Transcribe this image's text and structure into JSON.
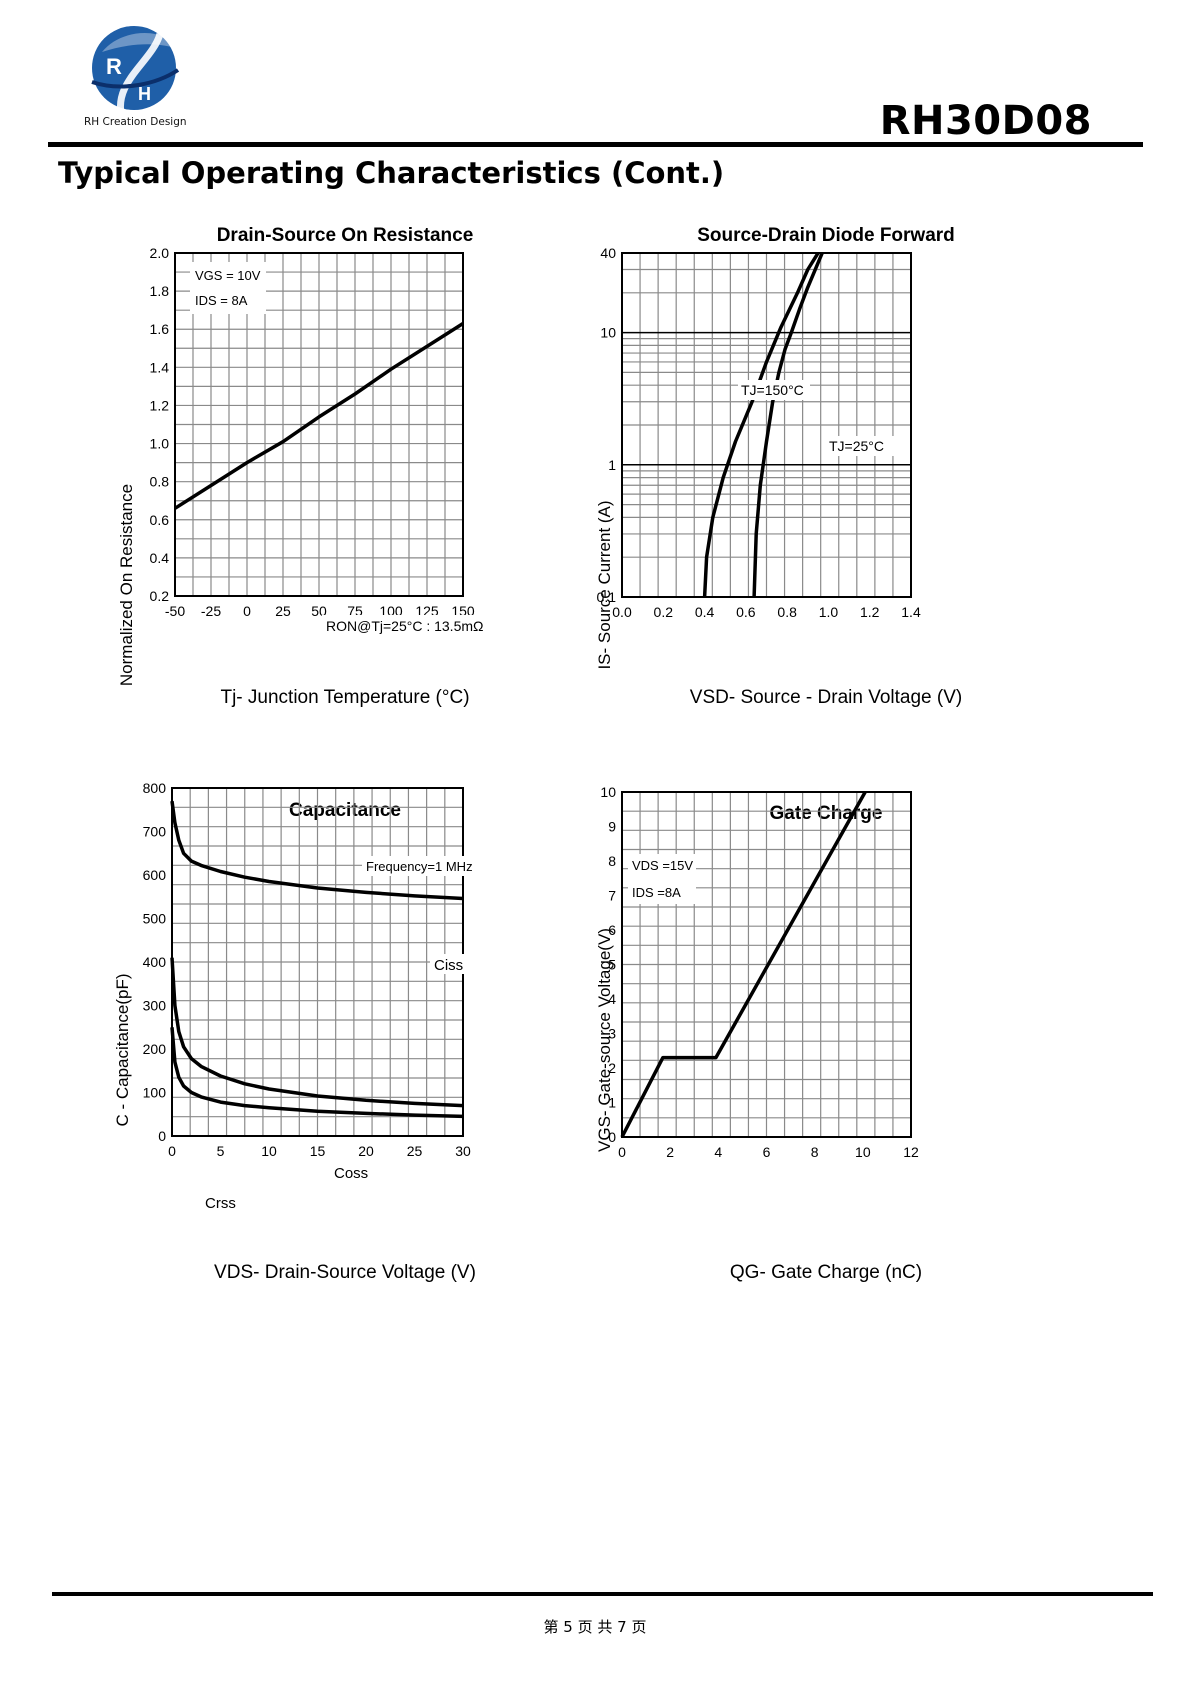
{
  "header": {
    "logo_text": "RH Creation Design",
    "part_number": "RH30D08",
    "section_title": "Typical Operating Characteristics (Cont.)"
  },
  "footer": {
    "page_text": "第 5 页 共 7 页"
  },
  "colors": {
    "brand_blue": "#1f5fa8",
    "brand_dark": "#0b2f6b"
  },
  "chart_data": [
    {
      "id": "rds",
      "type": "line",
      "title": "Drain-Source On Resistance",
      "xlabel": "Tj- Junction Temperature (°C)",
      "ylabel": "Normalized On Resistance",
      "xlim": [
        -50,
        150
      ],
      "ylim": [
        0.2,
        2.0
      ],
      "x_ticks": [
        "-50",
        "-25",
        "0",
        "25",
        "50",
        "75",
        "100",
        "125",
        "150"
      ],
      "y_ticks": [
        "0.2",
        "0.4",
        "0.6",
        "0.8",
        "1.0",
        "1.2",
        "1.4",
        "1.6",
        "1.8",
        "2.0"
      ],
      "grid": true,
      "annotations": [
        "VGS = 10V",
        "IDS = 8A",
        "RON@Tj=25°C : 13.5mΩ"
      ],
      "series": [
        {
          "x": [
            -50,
            -25,
            0,
            25,
            50,
            75,
            100,
            125,
            150
          ],
          "y": [
            0.66,
            0.78,
            0.9,
            1.01,
            1.14,
            1.26,
            1.39,
            1.51,
            1.63
          ]
        }
      ]
    },
    {
      "id": "diode",
      "type": "line",
      "title": "Source-Drain Diode Forward",
      "xlabel": "VSD- Source - Drain Voltage (V)",
      "ylabel": "IS- Source Current (A)",
      "xlim": [
        0.0,
        1.4
      ],
      "ylim": [
        0.1,
        40
      ],
      "y_scale": "log",
      "x_ticks": [
        "0.0",
        "0.2",
        "0.4",
        "0.6",
        "0.8",
        "1.0",
        "1.2",
        "1.4"
      ],
      "y_ticks": [
        "0.1",
        "1",
        "10",
        "40"
      ],
      "grid": true,
      "series": [
        {
          "name": "TJ=150°C",
          "x": [
            0.4,
            0.41,
            0.44,
            0.49,
            0.55,
            0.63,
            0.7,
            0.77,
            0.85,
            0.9,
            0.95
          ],
          "y": [
            0.1,
            0.2,
            0.4,
            0.8,
            1.5,
            3.0,
            6.0,
            11,
            20,
            30,
            40
          ]
        },
        {
          "name": "TJ=25°C",
          "x": [
            0.64,
            0.65,
            0.67,
            0.7,
            0.73,
            0.76,
            0.79,
            0.82,
            0.86,
            0.9,
            0.97
          ],
          "y": [
            0.1,
            0.3,
            0.7,
            1.5,
            3.0,
            5.0,
            7.5,
            10,
            15,
            22,
            40
          ]
        }
      ]
    },
    {
      "id": "cap",
      "type": "line",
      "title": "Capacitance",
      "xlabel": "VDS- Drain-Source Voltage (V)",
      "ylabel": "C - Capacitance(pF)",
      "xlim": [
        0,
        30
      ],
      "ylim": [
        0,
        800
      ],
      "x_ticks": [
        "0",
        "5",
        "10",
        "15",
        "20",
        "25",
        "30"
      ],
      "y_ticks": [
        "0",
        "100",
        "200",
        "300",
        "400",
        "500",
        "600",
        "700",
        "800"
      ],
      "grid": true,
      "annotations": [
        "Frequency=1 MHz"
      ],
      "series": [
        {
          "name": "Ciss",
          "x": [
            0,
            0.3,
            0.7,
            1.2,
            2,
            3,
            5,
            7.5,
            10,
            15,
            20,
            25,
            30
          ],
          "y": [
            770,
            720,
            680,
            650,
            632,
            622,
            608,
            595,
            585,
            570,
            560,
            552,
            546
          ]
        },
        {
          "name": "Coss",
          "x": [
            0,
            0.3,
            0.7,
            1.2,
            2,
            3,
            5,
            7.5,
            10,
            15,
            20,
            25,
            30
          ],
          "y": [
            410,
            300,
            240,
            205,
            178,
            160,
            138,
            120,
            108,
            92,
            82,
            75,
            70
          ]
        },
        {
          "name": "Crss",
          "x": [
            0,
            0.3,
            0.7,
            1.2,
            2,
            3,
            5,
            7.5,
            10,
            15,
            20,
            25,
            30
          ],
          "y": [
            250,
            170,
            135,
            115,
            100,
            90,
            78,
            70,
            65,
            57,
            52,
            48,
            45
          ]
        }
      ]
    },
    {
      "id": "gate",
      "type": "line",
      "title": "Gate Charge",
      "xlabel": "QG- Gate Charge (nC)",
      "ylabel": "VGS- Gate-source Voltage(V)",
      "xlim": [
        0,
        12
      ],
      "ylim": [
        0,
        10
      ],
      "x_ticks": [
        "0",
        "2",
        "4",
        "6",
        "8",
        "10",
        "12"
      ],
      "y_ticks": [
        "0",
        "1",
        "2",
        "3",
        "4",
        "5",
        "6",
        "7",
        "8",
        "9",
        "10"
      ],
      "grid": true,
      "annotations": [
        "VDS =15V",
        "IDS =8A"
      ],
      "series": [
        {
          "x": [
            0,
            1.7,
            3.9,
            10.1
          ],
          "y": [
            0,
            2.3,
            2.3,
            10
          ]
        }
      ]
    }
  ]
}
